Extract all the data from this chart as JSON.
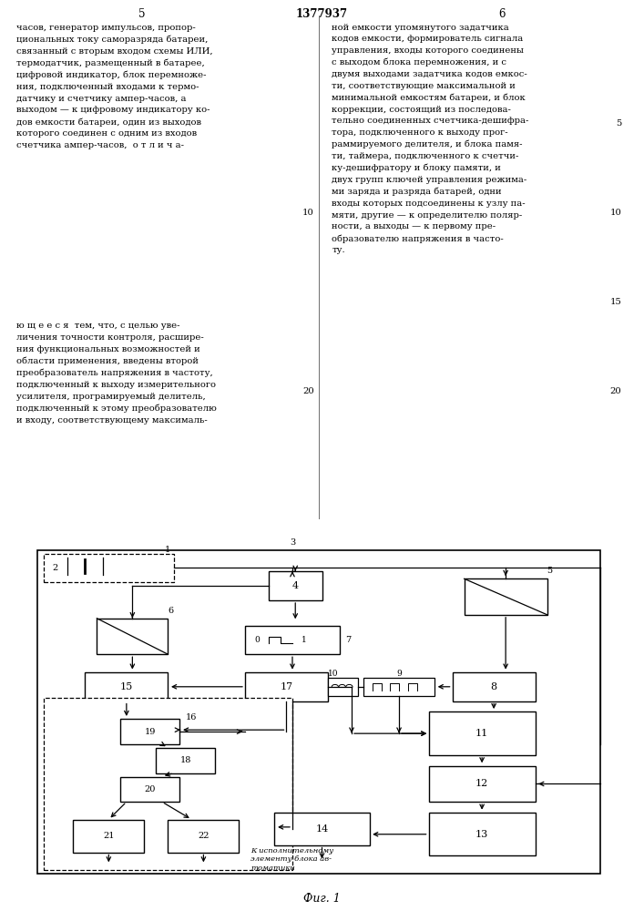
{
  "title": "1377937",
  "page_left": "5",
  "page_right": "6",
  "fig_label": "Фиг. 1",
  "text_left_top": "часов, генератор импульсов, пропор-\nциональных току саморазряда батареи,\nсвязанный с вторым входом схемы ИЛИ,\nтермодатчик, размещенный в батарее,\nцифровой индикатор, блок перемноже-\nния, подключенный входами к термо-\nдатчику и счетчику ампер-часов, а\nвыходом — к цифровому индикатору ко-\nдов емкости батареи, один из выходов\nкоторого соединен с одним из входов\nсчетчика ампер-часов,  о т л и ч а-",
  "text_right_top": "ной емкости упомянутого задатчика\nкодов емкости, формирователь сигнала\nуправления, входы которого соединены\nс выходом блока перемножения, и с\nдвумя выходами задатчика кодов емкос-\nти, соответствующие максимальной и\nминимальной емкостям батареи, и блок\nкоррекции, состоящий из последова-\nтельно соединенных счетчика-дешифра-\nтора, подключенного к выходу прог-\nраммируемого делителя, и блока памя-\nти, таймера, подключенного к счетчи-\nку-дешифратору и блоку памяти, и\nдвух групп ключей управления режима-\nми заряда и разряда батарей, одни\nвходы которых подсоединены к узлу па-\nмяти, другие — к определителю поляр-\nности, а выходы — к первому пре-\nобразователю напряжения в часто-\nту.",
  "text_left_mid": "ю щ е е с я  тем, что, с целью уве-\nличения точности контроля, расшире-\nния функциональных возможностей и\nобласти применения, введены второй\nпреобразователь напряжения в частоту,\nподключенный к выходу измерительного\nусилителя, програмируемый делитель,\nподключенный к этому преобразователю\nи входу, соответствующему максималь-",
  "num5_right_top": "5",
  "num10_right_top": "10",
  "num15_right_top": "15",
  "num20_right_top": "20"
}
